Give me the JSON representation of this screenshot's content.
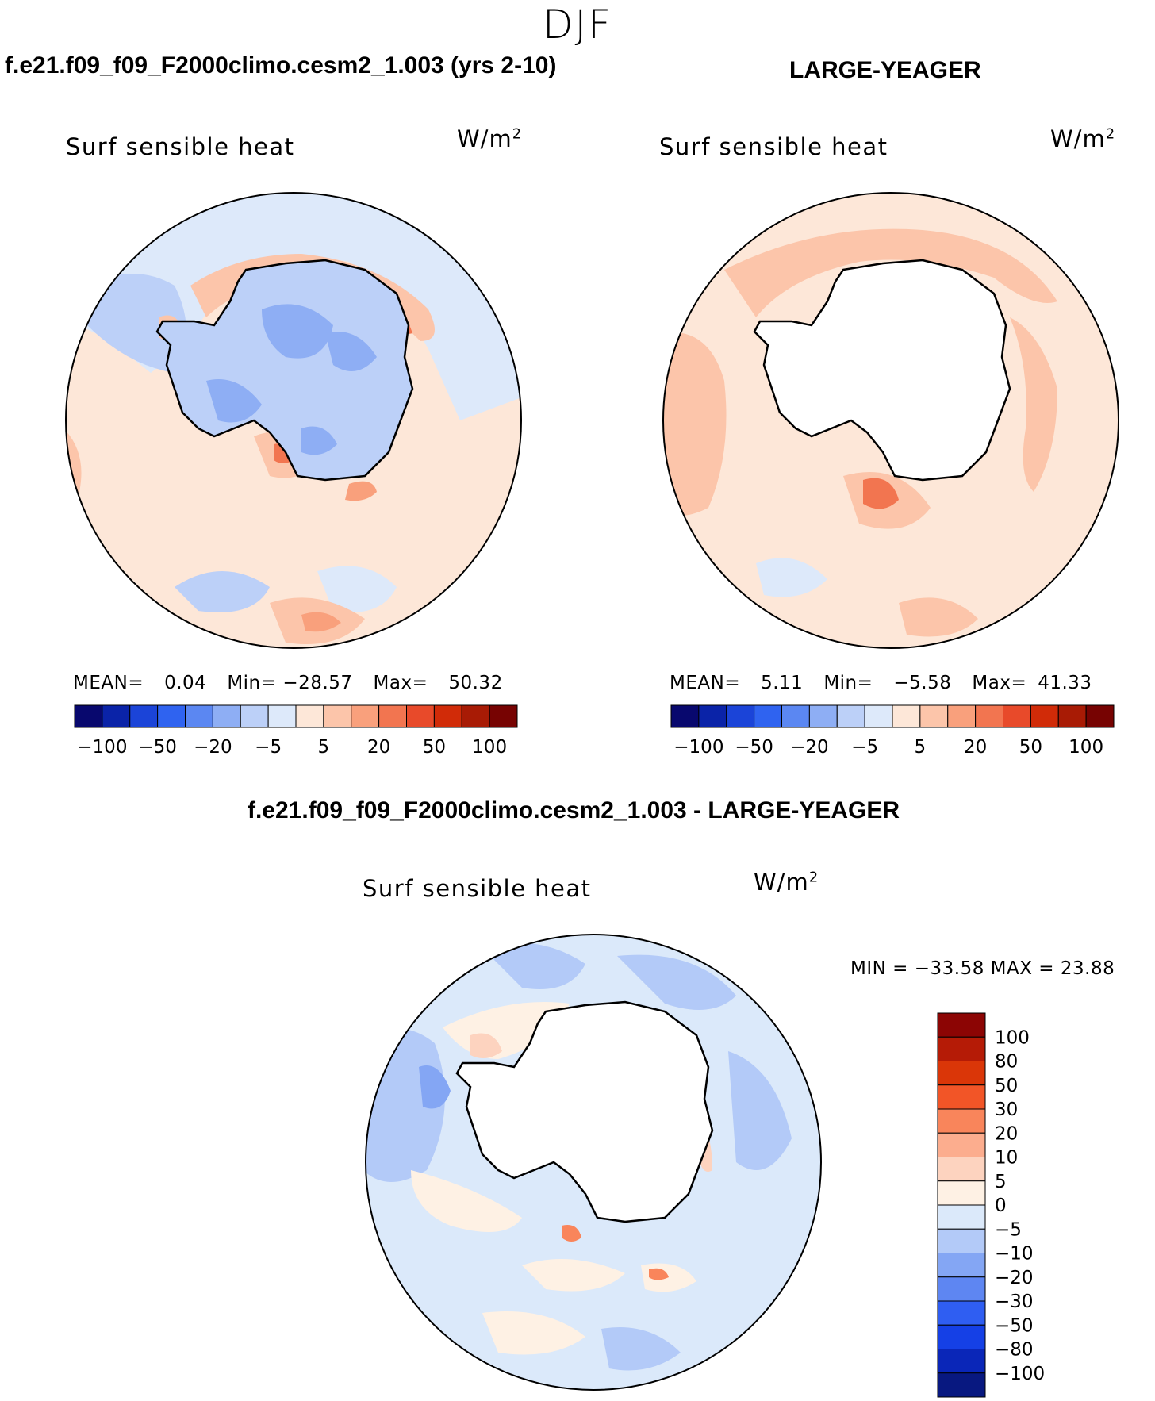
{
  "season": "DJF",
  "units": {
    "base": "W/m",
    "exp": "2"
  },
  "panels": {
    "left": {
      "case_title": "f.e21.f09_f09_F2000climo.cesm2_1.003 (yrs 2-10)",
      "plot_title": "Surf sensible heat",
      "mean_label": "MEAN=",
      "mean": "0.04",
      "min_label": "Min=",
      "min": "−28.57",
      "max_label": "Max=",
      "max": "50.32"
    },
    "right": {
      "case_title": "LARGE-YEAGER",
      "plot_title": "Surf sensible heat",
      "mean_label": "MEAN=",
      "mean": "5.11",
      "min_label": "Min=",
      "min": "−5.58",
      "max_label": "Max=",
      "max": "41.33"
    },
    "diff": {
      "case_title": "f.e21.f09_f09_F2000climo.cesm2_1.003 - LARGE-YEAGER",
      "plot_title": "Surf sensible heat",
      "minmax": "MIN = −33.58 MAX =   23.88"
    }
  },
  "colorbar_horizontal": {
    "colors": [
      "#08086e",
      "#0a23a8",
      "#1b44d8",
      "#2f63f0",
      "#5b87f2",
      "#8eaef4",
      "#bcd0f8",
      "#dde9fa",
      "#fde7d8",
      "#fcc5aa",
      "#f9a07c",
      "#f27550",
      "#e84a2a",
      "#d12b08",
      "#a81b05",
      "#770302"
    ],
    "ticks": [
      "−100",
      "−50",
      "−20",
      "−5",
      "5",
      "20",
      "50",
      "100"
    ]
  },
  "colorbar_vertical": {
    "colors": [
      "#8c0504",
      "#b51b06",
      "#da3608",
      "#f25527",
      "#f9855b",
      "#fcad8e",
      "#fdd3bf",
      "#fef1e4",
      "#dbe9fa",
      "#b3caf8",
      "#84a6f4",
      "#5e86f2",
      "#2f5ef2",
      "#1540e6",
      "#0a26b8",
      "#081880"
    ],
    "ticks": [
      "100",
      "80",
      "50",
      "30",
      "20",
      "10",
      "5",
      "0",
      "−5",
      "−10",
      "−20",
      "−30",
      "−50",
      "−80",
      "−100"
    ]
  }
}
